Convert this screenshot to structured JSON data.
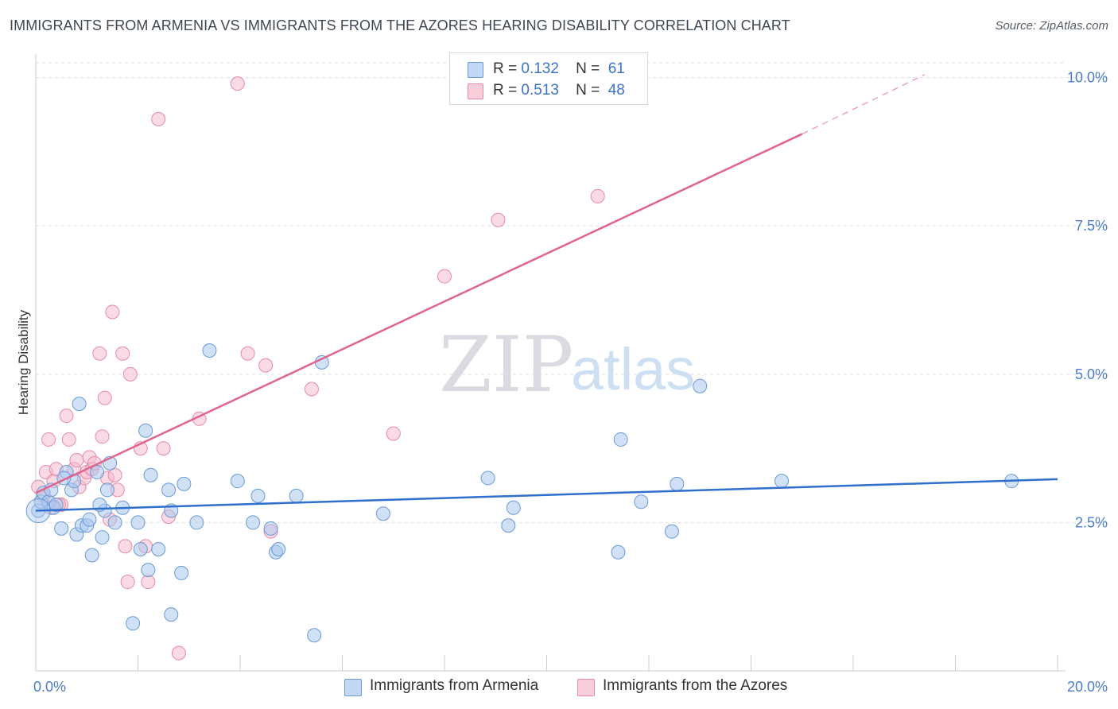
{
  "header": {
    "title": "IMMIGRANTS FROM ARMENIA VS IMMIGRANTS FROM THE AZORES HEARING DISABILITY CORRELATION CHART",
    "source": "Source: ZipAtlas.com"
  },
  "watermark": {
    "zip": "ZIP",
    "atlas": "atlas"
  },
  "legend": {
    "rows": [
      {
        "r_label": "R =",
        "r_value": "0.132",
        "n_label": "N =",
        "n_value": "61"
      },
      {
        "r_label": "R =",
        "r_value": "0.513",
        "n_label": "N =",
        "n_value": "48"
      }
    ]
  },
  "colors": {
    "armenia_fill": "#aac8ef",
    "armenia_stroke": "#6a9ad8",
    "armenia_line": "#2f6fce",
    "azores_fill": "#f6bccd",
    "azores_stroke": "#e68aa6",
    "azores_line": "#e0648c",
    "grid": "#dddddd",
    "tick_label": "#4a7cc9"
  },
  "chart_data": {
    "type": "scatter",
    "title": "IMMIGRANTS FROM ARMENIA VS IMMIGRANTS FROM THE AZORES HEARING DISABILITY CORRELATION CHART",
    "xlabel": "",
    "ylabel": "Hearing Disability",
    "xlim": [
      0,
      20
    ],
    "ylim": [
      0,
      10.25
    ],
    "x_tick_labels": [
      "0.0%",
      "20.0%"
    ],
    "y_ticks": [
      2.5,
      5.0,
      7.5,
      10.0
    ],
    "y_tick_labels": [
      "2.5%",
      "5.0%",
      "7.5%",
      "10.0%"
    ],
    "legend_position": "top-center",
    "series": [
      {
        "name": "Immigrants from Armenia",
        "r": 0.132,
        "n": 61,
        "trend": {
          "x0": 0,
          "y0": 2.7,
          "x1": 20,
          "y1": 3.23
        },
        "points": [
          [
            0.05,
            2.7
          ],
          [
            0.1,
            2.85
          ],
          [
            0.15,
            3.0
          ],
          [
            0.25,
            2.85
          ],
          [
            0.3,
            3.05
          ],
          [
            0.35,
            2.75
          ],
          [
            0.5,
            2.4
          ],
          [
            0.6,
            3.35
          ],
          [
            0.7,
            3.05
          ],
          [
            0.75,
            3.2
          ],
          [
            0.8,
            2.3
          ],
          [
            0.85,
            4.5
          ],
          [
            0.9,
            2.45
          ],
          [
            1.0,
            2.45
          ],
          [
            1.05,
            2.55
          ],
          [
            1.1,
            1.95
          ],
          [
            1.2,
            3.35
          ],
          [
            1.3,
            2.25
          ],
          [
            1.35,
            2.7
          ],
          [
            1.4,
            3.05
          ],
          [
            1.45,
            3.5
          ],
          [
            1.55,
            2.5
          ],
          [
            1.7,
            2.75
          ],
          [
            1.9,
            0.8
          ],
          [
            2.0,
            2.5
          ],
          [
            2.05,
            2.05
          ],
          [
            2.15,
            4.05
          ],
          [
            2.2,
            1.7
          ],
          [
            2.25,
            3.3
          ],
          [
            2.4,
            2.05
          ],
          [
            2.6,
            3.05
          ],
          [
            2.65,
            2.7
          ],
          [
            2.65,
            0.95
          ],
          [
            2.85,
            1.65
          ],
          [
            2.9,
            3.15
          ],
          [
            3.15,
            2.5
          ],
          [
            3.4,
            5.4
          ],
          [
            3.95,
            3.2
          ],
          [
            4.25,
            2.5
          ],
          [
            4.35,
            2.95
          ],
          [
            4.6,
            2.4
          ],
          [
            4.7,
            2.0
          ],
          [
            4.75,
            2.05
          ],
          [
            5.1,
            2.95
          ],
          [
            5.45,
            0.6
          ],
          [
            5.6,
            5.2
          ],
          [
            6.8,
            2.65
          ],
          [
            8.85,
            3.25
          ],
          [
            9.25,
            2.45
          ],
          [
            9.35,
            2.75
          ],
          [
            11.4,
            2.0
          ],
          [
            11.45,
            3.9
          ],
          [
            11.85,
            2.85
          ],
          [
            12.45,
            2.35
          ],
          [
            12.55,
            3.15
          ],
          [
            13.0,
            4.8
          ],
          [
            14.6,
            3.2
          ],
          [
            19.1,
            3.2
          ],
          [
            0.4,
            2.8
          ],
          [
            0.55,
            3.25
          ],
          [
            1.25,
            2.8
          ]
        ]
      },
      {
        "name": "Immigrants from the Azores",
        "r": 0.513,
        "n": 48,
        "trend": {
          "x0": 0,
          "y0": 3.0,
          "x1": 15.0,
          "y1": 9.05,
          "dash_to_x": 17.4,
          "dash_to_y": 10.05
        },
        "points": [
          [
            0.05,
            3.1
          ],
          [
            0.15,
            2.95
          ],
          [
            0.2,
            3.35
          ],
          [
            0.25,
            3.9
          ],
          [
            0.35,
            3.2
          ],
          [
            0.4,
            3.4
          ],
          [
            0.5,
            2.8
          ],
          [
            0.6,
            4.3
          ],
          [
            0.65,
            3.9
          ],
          [
            0.75,
            3.4
          ],
          [
            0.8,
            3.55
          ],
          [
            0.85,
            3.1
          ],
          [
            0.95,
            3.25
          ],
          [
            1.0,
            3.35
          ],
          [
            1.05,
            3.6
          ],
          [
            1.1,
            3.4
          ],
          [
            1.15,
            3.5
          ],
          [
            1.25,
            5.35
          ],
          [
            1.3,
            3.95
          ],
          [
            1.35,
            4.6
          ],
          [
            1.4,
            3.25
          ],
          [
            1.45,
            2.55
          ],
          [
            1.5,
            6.05
          ],
          [
            1.55,
            3.3
          ],
          [
            1.6,
            3.05
          ],
          [
            1.7,
            5.35
          ],
          [
            1.75,
            2.1
          ],
          [
            1.8,
            1.5
          ],
          [
            1.85,
            5.0
          ],
          [
            2.05,
            3.75
          ],
          [
            2.15,
            2.1
          ],
          [
            2.2,
            1.5
          ],
          [
            2.4,
            9.3
          ],
          [
            2.5,
            3.75
          ],
          [
            2.6,
            2.6
          ],
          [
            2.8,
            0.3
          ],
          [
            3.2,
            4.25
          ],
          [
            3.95,
            9.9
          ],
          [
            4.15,
            5.35
          ],
          [
            4.5,
            5.15
          ],
          [
            4.6,
            2.35
          ],
          [
            5.4,
            4.75
          ],
          [
            7.0,
            4.0
          ],
          [
            8.0,
            6.65
          ],
          [
            9.05,
            7.6
          ],
          [
            11.0,
            8.0
          ],
          [
            0.3,
            2.75
          ],
          [
            0.45,
            2.8
          ]
        ]
      }
    ]
  },
  "bottom_legend": {
    "armenia": "Immigrants from Armenia",
    "azores": "Immigrants from the Azores"
  }
}
